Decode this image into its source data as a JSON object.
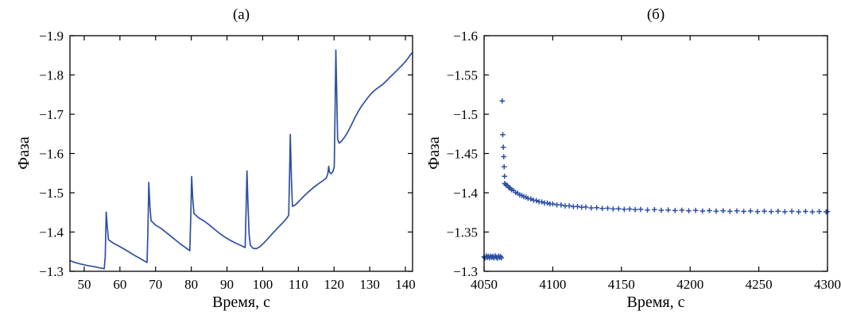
{
  "figure": {
    "background": "#ffffff",
    "data_color": "#2e4fa3",
    "axis_color": "#000000"
  },
  "chart_data": [
    {
      "id": "a",
      "type": "line",
      "title": "(а)",
      "xlabel": "Время, с",
      "ylabel": "Фаза",
      "xlim": [
        46,
        142
      ],
      "ylim": [
        -1.9,
        -1.3
      ],
      "y_axis_direction": "inverted_top_is_most_negative",
      "grid": false,
      "legend": null,
      "xticks": [
        50,
        60,
        70,
        80,
        90,
        100,
        110,
        120,
        130,
        140
      ],
      "yticks": [
        -1.9,
        -1.8,
        -1.7,
        -1.6,
        -1.5,
        -1.4,
        -1.3
      ],
      "color": "#2e4fa3",
      "points": [
        [
          46,
          -1.327
        ],
        [
          47.5,
          -1.322
        ],
        [
          49,
          -1.3185
        ],
        [
          51,
          -1.3145
        ],
        [
          53,
          -1.3115
        ],
        [
          54.5,
          -1.3085
        ],
        [
          55.6,
          -1.3065
        ],
        [
          55.9,
          -1.337
        ],
        [
          56.15,
          -1.451
        ],
        [
          56.45,
          -1.415
        ],
        [
          56.8,
          -1.3805
        ],
        [
          58,
          -1.3725
        ],
        [
          59.5,
          -1.3655
        ],
        [
          61,
          -1.3575
        ],
        [
          62.5,
          -1.3495
        ],
        [
          64,
          -1.341
        ],
        [
          65.5,
          -1.3335
        ],
        [
          66.8,
          -1.3265
        ],
        [
          67.6,
          -1.3225
        ],
        [
          67.85,
          -1.405
        ],
        [
          68.1,
          -1.5265
        ],
        [
          68.4,
          -1.4655
        ],
        [
          68.75,
          -1.4285
        ],
        [
          70,
          -1.4175
        ],
        [
          71.5,
          -1.4095
        ],
        [
          73,
          -1.3985
        ],
        [
          74.5,
          -1.3875
        ],
        [
          76,
          -1.3765
        ],
        [
          77.5,
          -1.366
        ],
        [
          78.8,
          -1.3575
        ],
        [
          79.6,
          -1.3525
        ],
        [
          79.85,
          -1.44
        ],
        [
          80.1,
          -1.5415
        ],
        [
          80.4,
          -1.487
        ],
        [
          80.75,
          -1.4475
        ],
        [
          82,
          -1.4365
        ],
        [
          83.5,
          -1.4285
        ],
        [
          85,
          -1.4185
        ],
        [
          86.5,
          -1.407
        ],
        [
          88,
          -1.396
        ],
        [
          89.5,
          -1.3865
        ],
        [
          91,
          -1.3785
        ],
        [
          92.5,
          -1.3715
        ],
        [
          94,
          -1.3655
        ],
        [
          95.1,
          -1.3605
        ],
        [
          95.35,
          -1.46
        ],
        [
          95.6,
          -1.5555
        ],
        [
          95.9,
          -1.468
        ],
        [
          96.2,
          -1.394
        ],
        [
          96.55,
          -1.3665
        ],
        [
          97.3,
          -1.3585
        ],
        [
          98.2,
          -1.3575
        ],
        [
          99.2,
          -1.3625
        ],
        [
          100.3,
          -1.372
        ],
        [
          101.5,
          -1.3835
        ],
        [
          102.8,
          -1.3965
        ],
        [
          104.1,
          -1.4095
        ],
        [
          105.4,
          -1.4215
        ],
        [
          106.6,
          -1.4335
        ],
        [
          107.3,
          -1.4425
        ],
        [
          107.55,
          -1.548
        ],
        [
          107.75,
          -1.6485
        ],
        [
          108.05,
          -1.535
        ],
        [
          108.35,
          -1.4655
        ],
        [
          109.2,
          -1.4695
        ],
        [
          110.5,
          -1.4815
        ],
        [
          111.8,
          -1.4935
        ],
        [
          113.1,
          -1.5045
        ],
        [
          114.4,
          -1.5145
        ],
        [
          115.7,
          -1.5235
        ],
        [
          116.9,
          -1.531
        ],
        [
          117.8,
          -1.5375
        ],
        [
          118.25,
          -1.5485
        ],
        [
          118.5,
          -1.5675
        ],
        [
          118.75,
          -1.5525
        ],
        [
          119.2,
          -1.5485
        ],
        [
          119.7,
          -1.5545
        ],
        [
          120.05,
          -1.5665
        ],
        [
          120.3,
          -1.72
        ],
        [
          120.5,
          -1.8635
        ],
        [
          120.75,
          -1.755
        ],
        [
          121,
          -1.6375
        ],
        [
          121.4,
          -1.6265
        ],
        [
          122,
          -1.6305
        ],
        [
          122.8,
          -1.6395
        ],
        [
          123.6,
          -1.651
        ],
        [
          124.4,
          -1.6645
        ],
        [
          125.2,
          -1.679
        ],
        [
          126,
          -1.694
        ],
        [
          126.8,
          -1.7075
        ],
        [
          127.6,
          -1.719
        ],
        [
          128.5,
          -1.7305
        ],
        [
          129.4,
          -1.7415
        ],
        [
          130.3,
          -1.7515
        ],
        [
          131.2,
          -1.7595
        ],
        [
          132.1,
          -1.766
        ],
        [
          133,
          -1.7715
        ],
        [
          133.9,
          -1.778
        ],
        [
          134.8,
          -1.786
        ],
        [
          135.7,
          -1.7945
        ],
        [
          136.6,
          -1.8025
        ],
        [
          137.5,
          -1.8105
        ],
        [
          138.4,
          -1.8185
        ],
        [
          139.3,
          -1.827
        ],
        [
          140.1,
          -1.8355
        ],
        [
          140.8,
          -1.8435
        ],
        [
          141.4,
          -1.8515
        ],
        [
          142,
          -1.857
        ]
      ]
    },
    {
      "id": "b",
      "type": "scatter",
      "marker": "plus",
      "title": "(б)",
      "xlabel": "Время, с",
      "ylabel": "Фаза",
      "xlim": [
        4050,
        4300
      ],
      "ylim": [
        -1.6,
        -1.3
      ],
      "y_axis_direction": "inverted_top_is_most_negative",
      "grid": false,
      "legend": null,
      "xticks": [
        4050,
        4100,
        4150,
        4200,
        4250,
        4300
      ],
      "yticks": [
        -1.6,
        -1.55,
        -1.5,
        -1.45,
        -1.4,
        -1.35,
        -1.3
      ],
      "color": "#2e4fa3",
      "points": [
        [
          4050,
          -1.3185
        ],
        [
          4050.8,
          -1.317
        ],
        [
          4051.6,
          -1.3196
        ],
        [
          4052.4,
          -1.3176
        ],
        [
          4053.2,
          -1.319
        ],
        [
          4054,
          -1.3172
        ],
        [
          4054.8,
          -1.3193
        ],
        [
          4055.6,
          -1.3178
        ],
        [
          4056.4,
          -1.3189
        ],
        [
          4057.2,
          -1.317
        ],
        [
          4058,
          -1.3196
        ],
        [
          4058.8,
          -1.318
        ],
        [
          4059.6,
          -1.3168
        ],
        [
          4060.4,
          -1.3193
        ],
        [
          4061.2,
          -1.3175
        ],
        [
          4062,
          -1.3189
        ],
        [
          4062.6,
          -1.3171
        ],
        [
          4063.2,
          -1.517
        ],
        [
          4063.6,
          -1.474
        ],
        [
          4064,
          -1.458
        ],
        [
          4064.3,
          -1.446
        ],
        [
          4064.6,
          -1.433
        ],
        [
          4064.9,
          -1.421
        ],
        [
          4065,
          -1.4117
        ],
        [
          4066,
          -1.4101
        ],
        [
          4067,
          -1.4092
        ],
        [
          4068,
          -1.4068
        ],
        [
          4069,
          -1.4058
        ],
        [
          4070,
          -1.4038
        ],
        [
          4071.5,
          -1.4027
        ],
        [
          4073,
          -1.4003
        ],
        [
          4074.5,
          -1.3994
        ],
        [
          4076,
          -1.3973
        ],
        [
          4077.5,
          -1.3967
        ],
        [
          4079,
          -1.3949
        ],
        [
          4080.5,
          -1.3944
        ],
        [
          4082,
          -1.3928
        ],
        [
          4084,
          -1.3922
        ],
        [
          4086,
          -1.3905
        ],
        [
          4088,
          -1.39
        ],
        [
          4090,
          -1.3886
        ],
        [
          4092,
          -1.3884
        ],
        [
          4094,
          -1.3871
        ],
        [
          4096,
          -1.387
        ],
        [
          4098,
          -1.3858
        ],
        [
          4100,
          -1.3859
        ],
        [
          4103,
          -1.3845
        ],
        [
          4106,
          -1.3844
        ],
        [
          4109,
          -1.3832
        ],
        [
          4112,
          -1.3834
        ],
        [
          4115,
          -1.3823
        ],
        [
          4118,
          -1.3825
        ],
        [
          4121,
          -1.3816
        ],
        [
          4124,
          -1.3818
        ],
        [
          4128,
          -1.3807
        ],
        [
          4132,
          -1.381
        ],
        [
          4136,
          -1.38
        ],
        [
          4140,
          -1.3803
        ],
        [
          4144,
          -1.3794
        ],
        [
          4148,
          -1.3797
        ],
        [
          4152,
          -1.3789
        ],
        [
          4156,
          -1.3793
        ],
        [
          4160,
          -1.3785
        ],
        [
          4164,
          -1.3789
        ],
        [
          4169,
          -1.3781
        ],
        [
          4174,
          -1.3785
        ],
        [
          4179,
          -1.3777
        ],
        [
          4184,
          -1.3781
        ],
        [
          4189,
          -1.3774
        ],
        [
          4194,
          -1.3778
        ],
        [
          4199,
          -1.3771
        ],
        [
          4204,
          -1.3776
        ],
        [
          4209,
          -1.3768
        ],
        [
          4214,
          -1.3773
        ],
        [
          4219,
          -1.3766
        ],
        [
          4224,
          -1.3771
        ],
        [
          4229,
          -1.3764
        ],
        [
          4234,
          -1.3769
        ],
        [
          4239,
          -1.3763
        ],
        [
          4244,
          -1.3768
        ],
        [
          4249,
          -1.3761
        ],
        [
          4254,
          -1.3766
        ],
        [
          4259,
          -1.376
        ],
        [
          4264,
          -1.3765
        ],
        [
          4269,
          -1.3759
        ],
        [
          4274,
          -1.3764
        ],
        [
          4279,
          -1.3758
        ],
        [
          4284,
          -1.3763
        ],
        [
          4289,
          -1.3757
        ],
        [
          4294,
          -1.3762
        ],
        [
          4299,
          -1.3757
        ],
        [
          4300,
          -1.376
        ]
      ]
    }
  ]
}
